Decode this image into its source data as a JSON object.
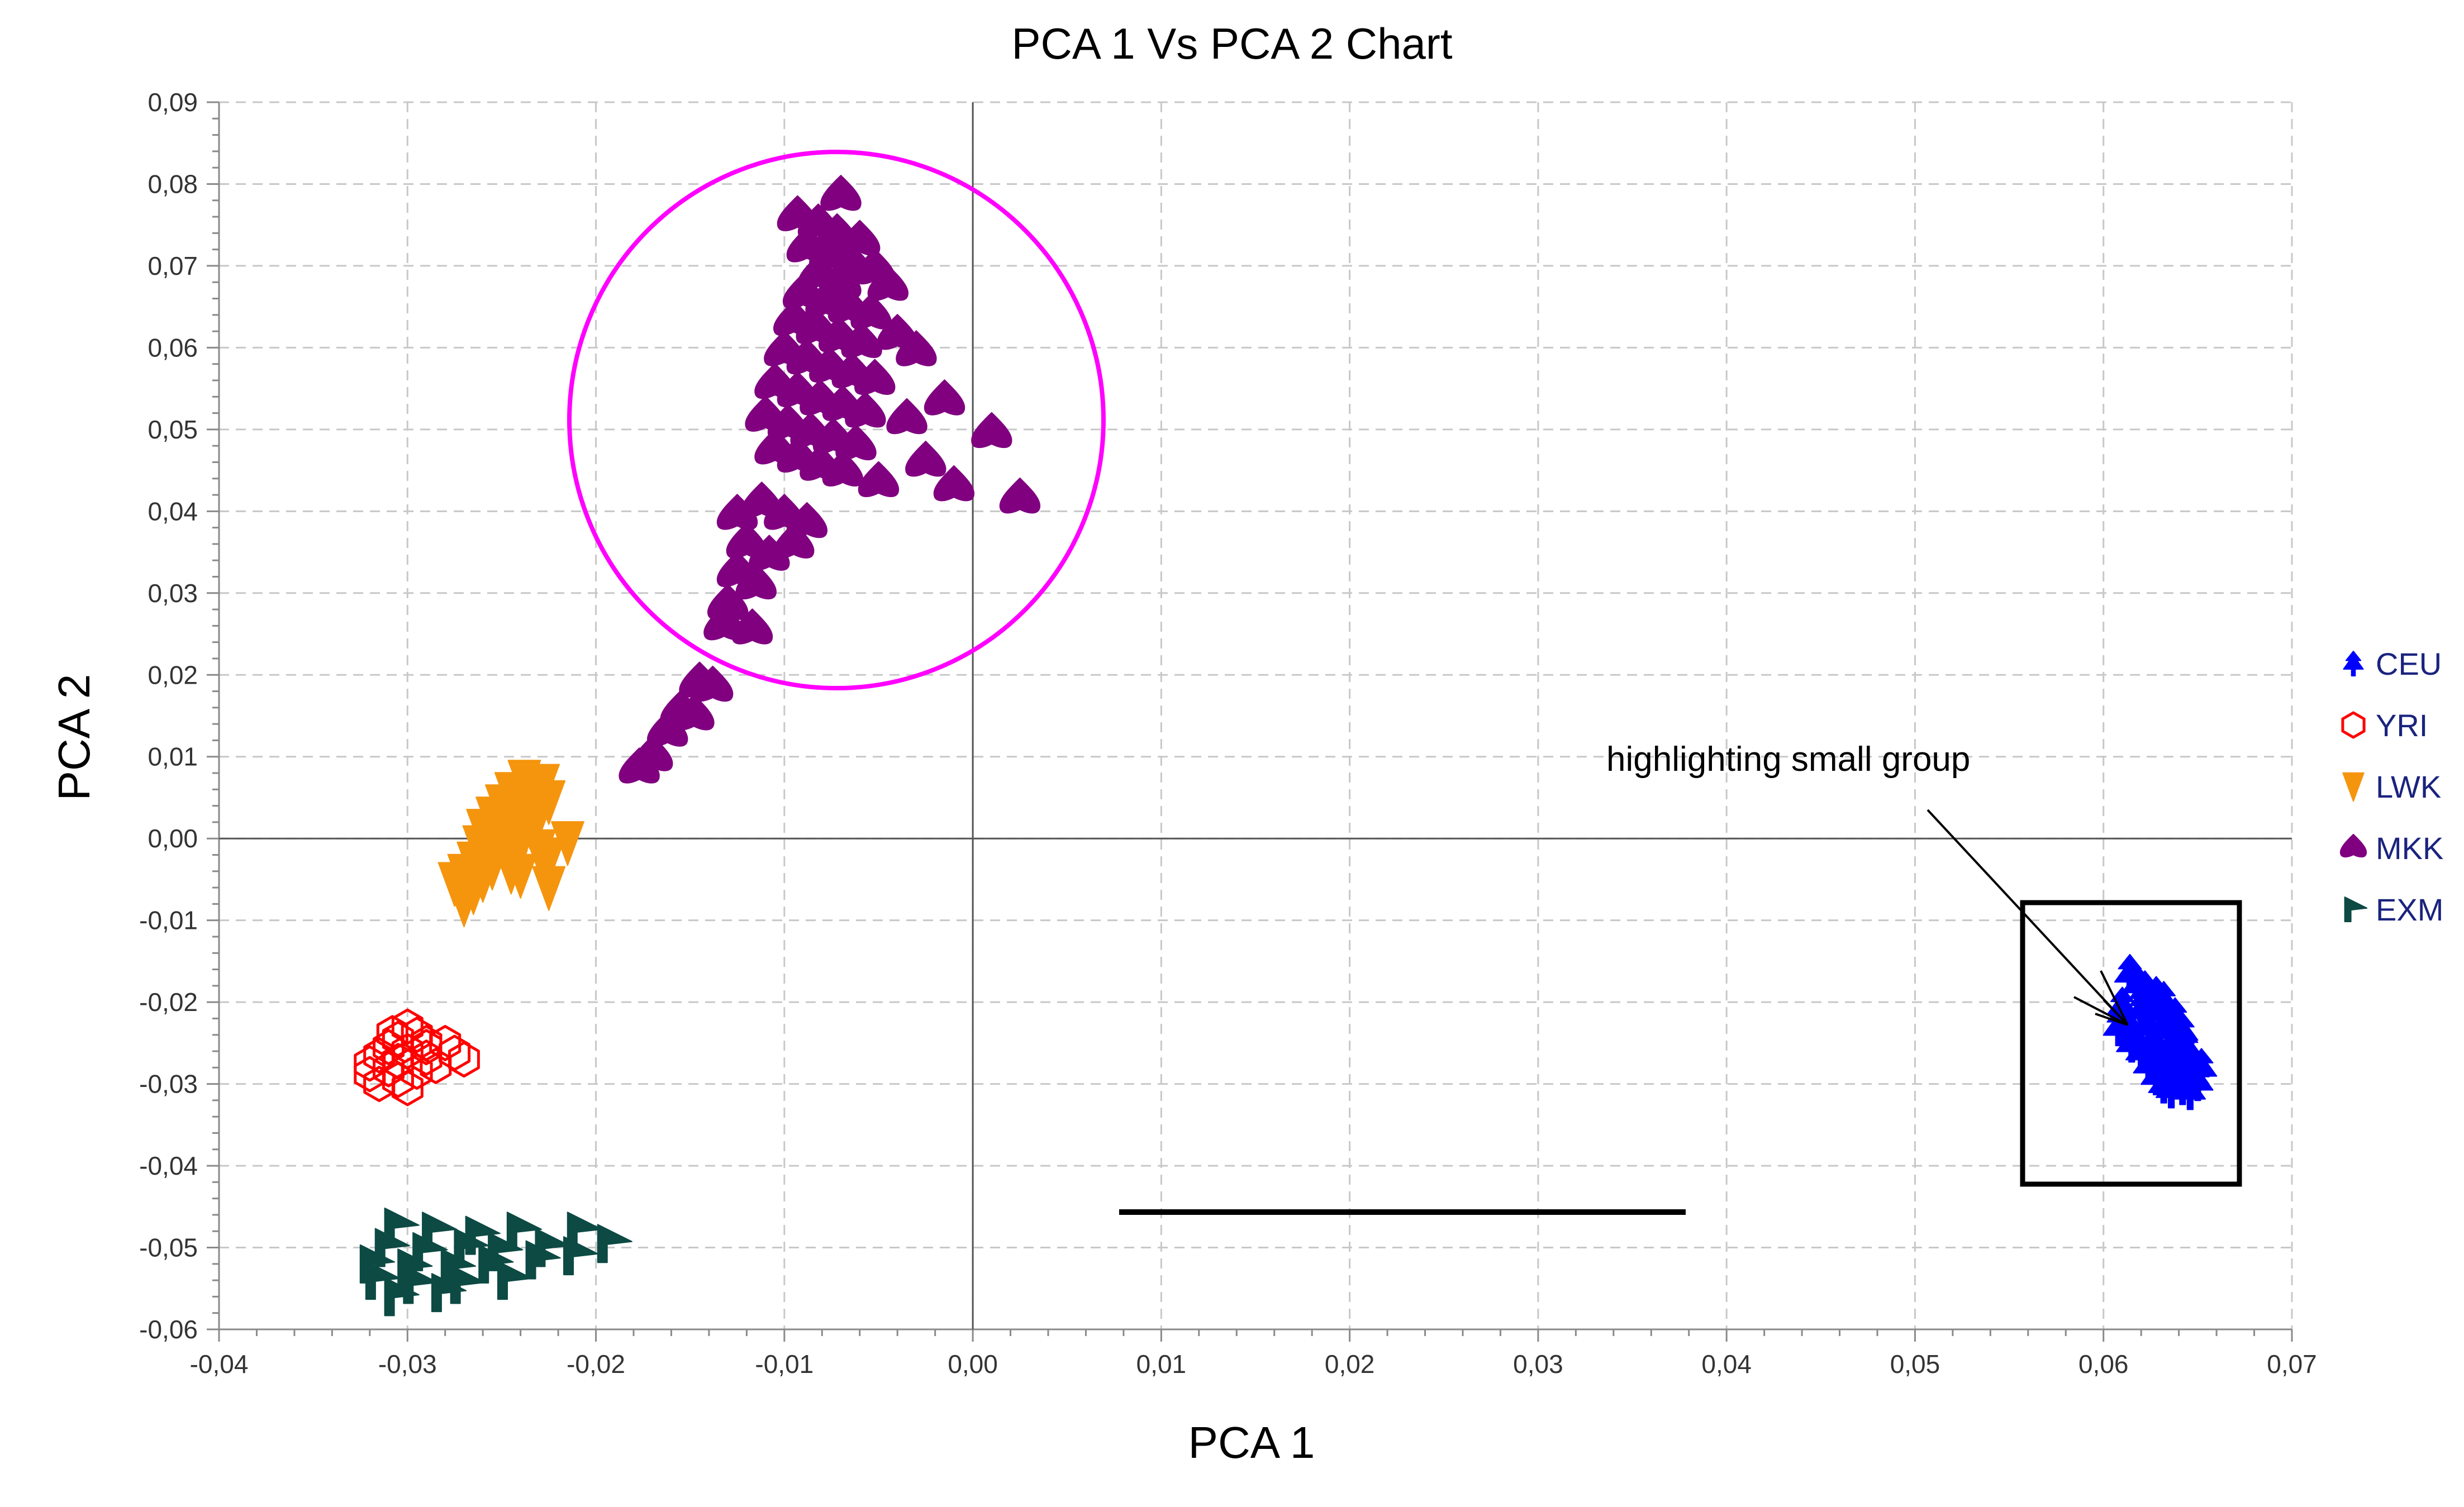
{
  "chart_data": {
    "type": "scatter",
    "title": "PCA 1 Vs PCA 2 Chart",
    "xlabel": "PCA 1",
    "ylabel": "PCA 2",
    "xlim": [
      -0.04,
      0.07
    ],
    "ylim": [
      -0.06,
      0.09
    ],
    "x_ticks": [
      -0.04,
      -0.03,
      -0.02,
      -0.01,
      0.0,
      0.01,
      0.02,
      0.03,
      0.04,
      0.05,
      0.06,
      0.07
    ],
    "y_ticks": [
      -0.06,
      -0.05,
      -0.04,
      -0.03,
      -0.02,
      -0.01,
      0.0,
      0.01,
      0.02,
      0.03,
      0.04,
      0.05,
      0.06,
      0.07,
      0.08,
      0.09
    ],
    "x_tick_labels": [
      "-0,04",
      "-0,03",
      "-0,02",
      "-0,01",
      "0,00",
      "0,01",
      "0,02",
      "0,03",
      "0,04",
      "0,05",
      "0,06",
      "0,07"
    ],
    "y_tick_labels": [
      "-0,06",
      "-0,05",
      "-0,04",
      "-0,03",
      "-0,02",
      "-0,01",
      "0,00",
      "0,01",
      "0,02",
      "0,03",
      "0,04",
      "0,05",
      "0,06",
      "0,07",
      "0,08",
      "0,09"
    ],
    "grid": true,
    "legend_position": "right",
    "series": [
      {
        "name": "CEU",
        "color": "#0000ff",
        "marker": "tree-icon",
        "filled": true,
        "points": [
          [
            0.0614,
            -0.0165
          ],
          [
            0.0618,
            -0.0178
          ],
          [
            0.0622,
            -0.0185
          ],
          [
            0.0628,
            -0.0192
          ],
          [
            0.0632,
            -0.0198
          ],
          [
            0.061,
            -0.0205
          ],
          [
            0.062,
            -0.021
          ],
          [
            0.063,
            -0.0212
          ],
          [
            0.0638,
            -0.0218
          ],
          [
            0.0612,
            -0.0222
          ],
          [
            0.0624,
            -0.0228
          ],
          [
            0.0634,
            -0.023
          ],
          [
            0.0642,
            -0.0236
          ],
          [
            0.0616,
            -0.0242
          ],
          [
            0.0626,
            -0.0246
          ],
          [
            0.0636,
            -0.025
          ],
          [
            0.0644,
            -0.0255
          ],
          [
            0.062,
            -0.026
          ],
          [
            0.063,
            -0.0264
          ],
          [
            0.064,
            -0.0268
          ],
          [
            0.0646,
            -0.0272
          ],
          [
            0.0624,
            -0.0276
          ],
          [
            0.0634,
            -0.028
          ],
          [
            0.0644,
            -0.0284
          ],
          [
            0.0628,
            -0.029
          ],
          [
            0.0638,
            -0.0293
          ],
          [
            0.0648,
            -0.029
          ],
          [
            0.0632,
            -0.03
          ],
          [
            0.0642,
            -0.0302
          ],
          [
            0.065,
            -0.0297
          ],
          [
            0.0646,
            -0.0308
          ],
          [
            0.0636,
            -0.0306
          ],
          [
            0.0608,
            -0.023
          ],
          [
            0.0615,
            -0.025
          ],
          [
            0.0652,
            -0.028
          ],
          [
            0.064,
            -0.024
          ]
        ]
      },
      {
        "name": "YRI",
        "color": "#ff0000",
        "marker": "hexagon-icon",
        "filled": false,
        "points": [
          [
            -0.03,
            -0.023
          ],
          [
            -0.0295,
            -0.024
          ],
          [
            -0.0305,
            -0.0245
          ],
          [
            -0.029,
            -0.025
          ],
          [
            -0.031,
            -0.0255
          ],
          [
            -0.028,
            -0.025
          ],
          [
            -0.03,
            -0.026
          ],
          [
            -0.0315,
            -0.0265
          ],
          [
            -0.029,
            -0.0268
          ],
          [
            -0.0275,
            -0.0262
          ],
          [
            -0.0305,
            -0.0272
          ],
          [
            -0.032,
            -0.0275
          ],
          [
            -0.0285,
            -0.0278
          ],
          [
            -0.031,
            -0.0282
          ],
          [
            -0.0295,
            -0.0285
          ],
          [
            -0.032,
            -0.0288
          ],
          [
            -0.0305,
            -0.0295
          ],
          [
            -0.0315,
            -0.03
          ],
          [
            -0.03,
            -0.0305
          ],
          [
            -0.029,
            -0.0255
          ],
          [
            -0.0308,
            -0.0238
          ],
          [
            -0.027,
            -0.027
          ]
        ]
      },
      {
        "name": "LWK",
        "color": "#f5950e",
        "marker": "triangle-down-icon",
        "filled": true,
        "points": [
          [
            -0.0238,
            0.007
          ],
          [
            -0.0228,
            0.0065
          ],
          [
            -0.0245,
            0.0055
          ],
          [
            -0.0235,
            0.005
          ],
          [
            -0.0225,
            0.0045
          ],
          [
            -0.025,
            0.004
          ],
          [
            -0.024,
            0.0035
          ],
          [
            -0.023,
            0.003
          ],
          [
            -0.0255,
            0.0025
          ],
          [
            -0.0245,
            0.002
          ],
          [
            -0.0235,
            0.0015
          ],
          [
            -0.026,
            0.001
          ],
          [
            -0.025,
            0.0005
          ],
          [
            -0.024,
            0.0
          ],
          [
            -0.0215,
            -0.0005
          ],
          [
            -0.0262,
            -0.001
          ],
          [
            -0.0252,
            -0.0015
          ],
          [
            -0.0242,
            -0.002
          ],
          [
            -0.0225,
            -0.0025
          ],
          [
            -0.0265,
            -0.003
          ],
          [
            -0.0255,
            -0.0035
          ],
          [
            -0.0245,
            -0.004
          ],
          [
            -0.027,
            -0.0045
          ],
          [
            -0.026,
            -0.005
          ],
          [
            -0.0225,
            -0.006
          ],
          [
            -0.0275,
            -0.0055
          ],
          [
            -0.0265,
            -0.0065
          ],
          [
            -0.027,
            -0.008
          ],
          [
            -0.024,
            -0.0045
          ],
          [
            -0.023,
            -0.0015
          ]
        ]
      },
      {
        "name": "MKK",
        "color": "#800080",
        "marker": "drop-icon",
        "filled": true,
        "points": [
          [
            -0.007,
            0.0785
          ],
          [
            -0.0093,
            0.076
          ],
          [
            -0.0082,
            0.075
          ],
          [
            -0.0072,
            0.0738
          ],
          [
            -0.006,
            0.073
          ],
          [
            -0.0088,
            0.0722
          ],
          [
            -0.0076,
            0.0712
          ],
          [
            -0.0064,
            0.07
          ],
          [
            -0.0052,
            0.0695
          ],
          [
            -0.0045,
            0.0675
          ],
          [
            -0.0082,
            0.0688
          ],
          [
            -0.007,
            0.0678
          ],
          [
            -0.009,
            0.0665
          ],
          [
            -0.0078,
            0.0655
          ],
          [
            -0.0066,
            0.0648
          ],
          [
            -0.0054,
            0.064
          ],
          [
            -0.004,
            0.0615
          ],
          [
            -0.0095,
            0.0632
          ],
          [
            -0.0083,
            0.0622
          ],
          [
            -0.0071,
            0.0612
          ],
          [
            -0.0059,
            0.0605
          ],
          [
            -0.003,
            0.0595
          ],
          [
            -0.01,
            0.0595
          ],
          [
            -0.0088,
            0.0585
          ],
          [
            -0.0076,
            0.0575
          ],
          [
            -0.0064,
            0.0568
          ],
          [
            -0.0052,
            0.056
          ],
          [
            -0.0015,
            0.0535
          ],
          [
            -0.0105,
            0.0555
          ],
          [
            -0.0093,
            0.0545
          ],
          [
            -0.0081,
            0.0535
          ],
          [
            -0.0069,
            0.0528
          ],
          [
            -0.0057,
            0.052
          ],
          [
            -0.0035,
            0.0512
          ],
          [
            0.001,
            0.0495
          ],
          [
            -0.011,
            0.0515
          ],
          [
            -0.0098,
            0.0505
          ],
          [
            -0.0086,
            0.0495
          ],
          [
            -0.0074,
            0.0488
          ],
          [
            -0.0062,
            0.048
          ],
          [
            -0.0025,
            0.046
          ],
          [
            -0.0105,
            0.0475
          ],
          [
            -0.0093,
            0.0465
          ],
          [
            -0.0081,
            0.0455
          ],
          [
            -0.0069,
            0.0448
          ],
          [
            -0.005,
            0.0435
          ],
          [
            -0.001,
            0.043
          ],
          [
            0.0025,
            0.0415
          ],
          [
            -0.0125,
            0.0395
          ],
          [
            -0.0112,
            0.041
          ],
          [
            -0.01,
            0.0395
          ],
          [
            -0.0088,
            0.0385
          ],
          [
            -0.012,
            0.036
          ],
          [
            -0.0108,
            0.0345
          ],
          [
            -0.0095,
            0.036
          ],
          [
            -0.0125,
            0.0325
          ],
          [
            -0.0115,
            0.031
          ],
          [
            -0.013,
            0.0285
          ],
          [
            -0.0132,
            0.026
          ],
          [
            -0.0117,
            0.0255
          ],
          [
            -0.0145,
            0.019
          ],
          [
            -0.0138,
            0.0185
          ],
          [
            -0.0155,
            0.0155
          ],
          [
            -0.0148,
            0.015
          ],
          [
            -0.0162,
            0.013
          ],
          [
            -0.017,
            0.01
          ],
          [
            -0.0177,
            0.0085
          ]
        ]
      },
      {
        "name": "EXM",
        "color": "#0d4a44",
        "marker": "flag-icon",
        "filled": true,
        "points": [
          [
            -0.0305,
            -0.0475
          ],
          [
            -0.0285,
            -0.048
          ],
          [
            -0.0262,
            -0.0485
          ],
          [
            -0.024,
            -0.048
          ],
          [
            -0.0208,
            -0.048
          ],
          [
            -0.0192,
            -0.0495
          ],
          [
            -0.031,
            -0.05
          ],
          [
            -0.029,
            -0.0505
          ],
          [
            -0.0268,
            -0.05
          ],
          [
            -0.025,
            -0.0505
          ],
          [
            -0.0225,
            -0.05
          ],
          [
            -0.0318,
            -0.052
          ],
          [
            -0.0298,
            -0.0525
          ],
          [
            -0.0275,
            -0.0525
          ],
          [
            -0.0255,
            -0.052
          ],
          [
            -0.023,
            -0.0515
          ],
          [
            -0.021,
            -0.051
          ],
          [
            -0.0315,
            -0.054
          ],
          [
            -0.0295,
            -0.0545
          ],
          [
            -0.027,
            -0.0545
          ],
          [
            -0.0245,
            -0.054
          ],
          [
            -0.0305,
            -0.056
          ],
          [
            -0.028,
            -0.0555
          ]
        ]
      }
    ],
    "annotations": {
      "text": "highlighting small group"
    }
  }
}
